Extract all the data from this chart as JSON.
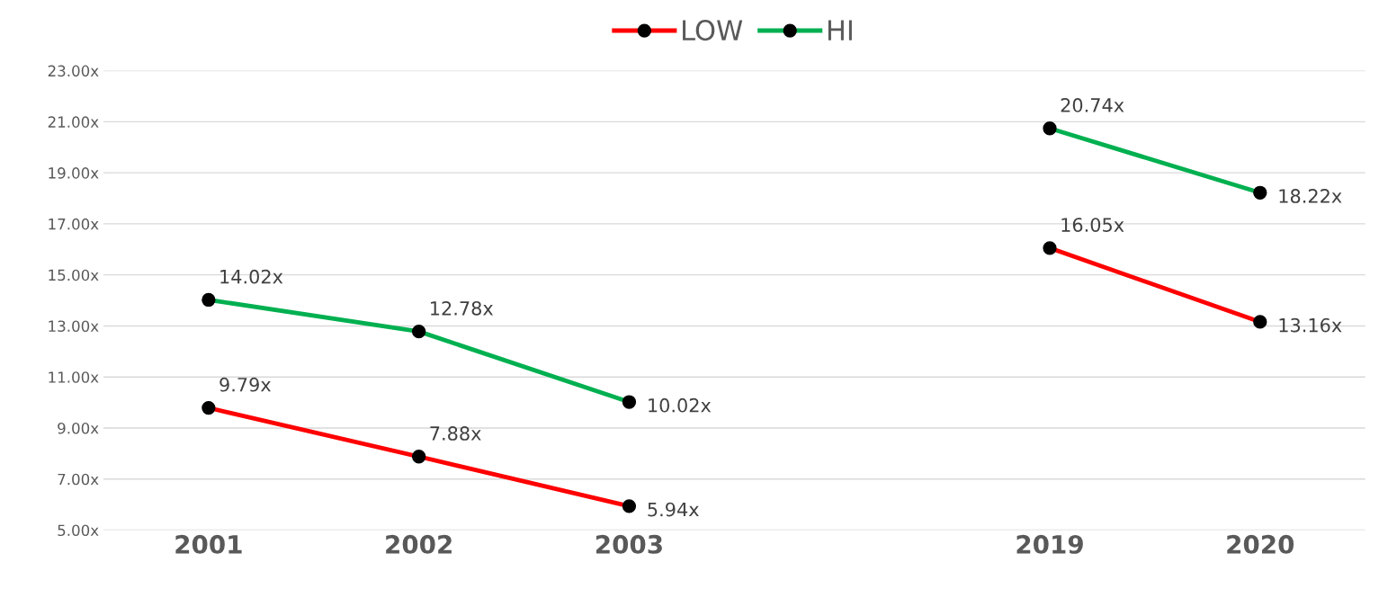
{
  "chart_data": {
    "type": "line",
    "categories": [
      "2001",
      "2002",
      "2003",
      null,
      "2019",
      "2020"
    ],
    "series": [
      {
        "name": "LOW",
        "color": "#ff0000",
        "values": [
          9.79,
          7.88,
          5.94,
          null,
          16.05,
          13.16
        ],
        "value_labels": [
          "9.79x",
          "7.88x",
          "5.94x",
          null,
          "16.05x",
          "13.16x"
        ]
      },
      {
        "name": "HI",
        "color": "#00b050",
        "values": [
          14.02,
          12.78,
          10.02,
          null,
          20.74,
          18.22
        ],
        "value_labels": [
          "14.02x",
          "12.78x",
          "10.02x",
          null,
          "20.74x",
          "18.22x"
        ]
      }
    ],
    "ylim": [
      5,
      23
    ],
    "yticks": [
      {
        "value": 5,
        "label": "5.00x"
      },
      {
        "value": 7,
        "label": "7.00x"
      },
      {
        "value": 9,
        "label": "9.00x"
      },
      {
        "value": 11,
        "label": "11.00x"
      },
      {
        "value": 13,
        "label": "13.00x"
      },
      {
        "value": 15,
        "label": "15.00x"
      },
      {
        "value": 17,
        "label": "17.00x"
      },
      {
        "value": 19,
        "label": "19.00x"
      },
      {
        "value": 21,
        "label": "21.00x"
      },
      {
        "value": 23,
        "label": "23.00x"
      }
    ],
    "grid": "y",
    "legend": "top",
    "marker": "circle",
    "line_style": "solid"
  }
}
